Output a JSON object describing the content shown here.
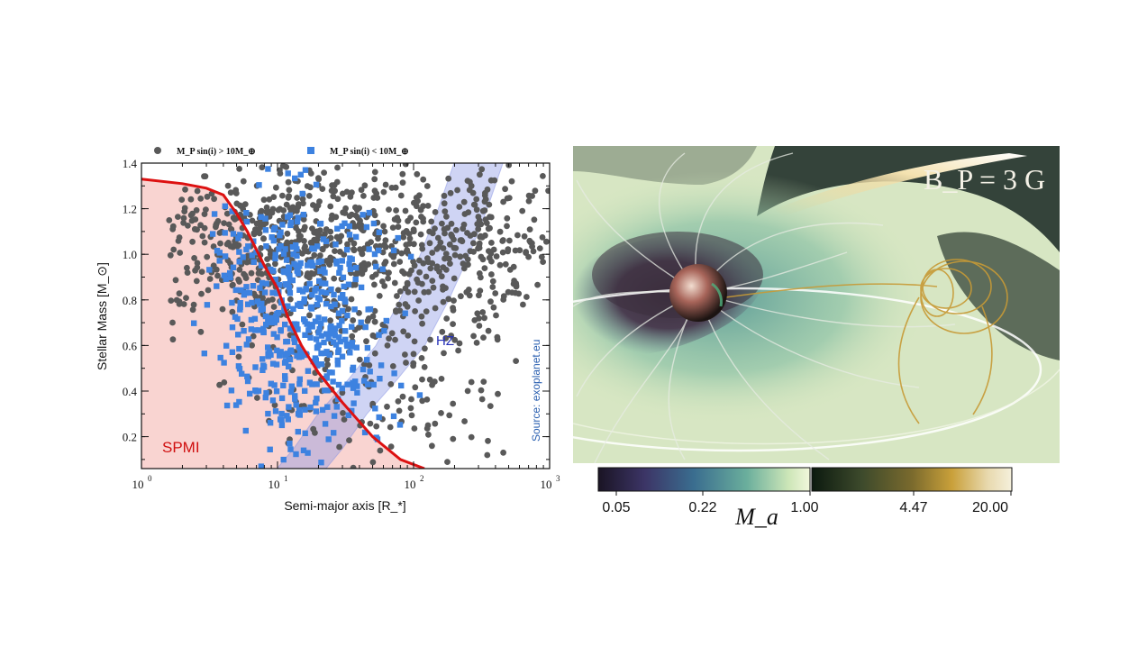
{
  "chart_data": [
    {
      "type": "scatter",
      "xscale": "log",
      "xlim": [
        1,
        1000
      ],
      "ylim": [
        0.06,
        1.4
      ],
      "xlabel": "Semi-major axis [R_*]",
      "ylabel": "Stellar Mass [M_⊙]",
      "xtick_values": [
        1,
        10,
        100,
        1000
      ],
      "xtick_labels": [
        "10",
        "10",
        "10",
        "10"
      ],
      "xtick_exponents": [
        "0",
        "1",
        "2",
        "3"
      ],
      "ytick_values": [
        0.2,
        0.4,
        0.6,
        0.8,
        1.0,
        1.2,
        1.4
      ],
      "ytick_labels": [
        "0.2",
        "0.4",
        "0.6",
        "0.8",
        "1.0",
        "1.2",
        "1.4"
      ],
      "legend": [
        {
          "name": "M_P sin(i) > 10M_⊕",
          "marker": "circle",
          "color": "#595959"
        },
        {
          "name": "M_P sin(i) < 10M_⊕",
          "marker": "square",
          "color": "#3d82e0"
        }
      ],
      "series": [
        {
          "name": "M_P sin(i) > 10M_⊕",
          "color": "#595959",
          "marker": "circle",
          "count": 1100,
          "seed": 7,
          "clusters": [
            {
              "x_logmean": 1.05,
              "x_logsd": 0.55,
              "y_mean": 1.05,
              "y_sd": 0.18,
              "weight": 0.55
            },
            {
              "x_logmean": 2.3,
              "x_logsd": 0.4,
              "y_mean": 1.05,
              "y_sd": 0.2,
              "weight": 0.3
            },
            {
              "x_logmean": 1.8,
              "x_logsd": 0.5,
              "y_mean": 0.45,
              "y_sd": 0.25,
              "weight": 0.15
            }
          ]
        },
        {
          "name": "M_P sin(i) < 10M_⊕",
          "color": "#3d82e0",
          "marker": "square",
          "count": 480,
          "seed": 19,
          "clusters": [
            {
              "x_logmean": 1.15,
              "x_logsd": 0.3,
              "y_mean": 0.85,
              "y_sd": 0.2,
              "weight": 0.7
            },
            {
              "x_logmean": 1.2,
              "x_logsd": 0.3,
              "y_mean": 0.45,
              "y_sd": 0.18,
              "weight": 0.3
            }
          ]
        }
      ],
      "spmi_curve": {
        "label": "SPMI",
        "color": "#dd1111",
        "points": [
          [
            1,
            1.33
          ],
          [
            2,
            1.31
          ],
          [
            3,
            1.29
          ],
          [
            4,
            1.26
          ],
          [
            5,
            1.18
          ],
          [
            6,
            1.1
          ],
          [
            8,
            0.95
          ],
          [
            10,
            0.85
          ],
          [
            12,
            0.72
          ],
          [
            15,
            0.6
          ],
          [
            20,
            0.48
          ],
          [
            30,
            0.35
          ],
          [
            50,
            0.2
          ],
          [
            80,
            0.1
          ],
          [
            120,
            0.06
          ]
        ]
      },
      "hz_band": {
        "label": "HZ",
        "center": [
          [
            15,
            0.06
          ],
          [
            20,
            0.15
          ],
          [
            30,
            0.3
          ],
          [
            50,
            0.45
          ],
          [
            80,
            0.6
          ],
          [
            120,
            0.8
          ],
          [
            170,
            1.0
          ],
          [
            230,
            1.2
          ],
          [
            300,
            1.4
          ]
        ],
        "halfwidth_dex": 0.18
      },
      "annotation": "Source: exoplanet.eu"
    },
    {
      "type": "heatmap",
      "title": "B_P = 3 G",
      "colorbar_label": "M_a",
      "colorbar_ticks": [
        "0.05",
        "0.22",
        "1.00",
        "4.47",
        "20.00"
      ],
      "colormap_low": [
        "#1a1424",
        "#3c3566",
        "#3a6d8f",
        "#6aae9c",
        "#cde6b8",
        "#f2f7dc"
      ],
      "colormap_high": [
        "#0c1a0f",
        "#3d4a2c",
        "#7a6a2d",
        "#c9a03a",
        "#e8d9ae",
        "#f5f0dc"
      ]
    }
  ]
}
